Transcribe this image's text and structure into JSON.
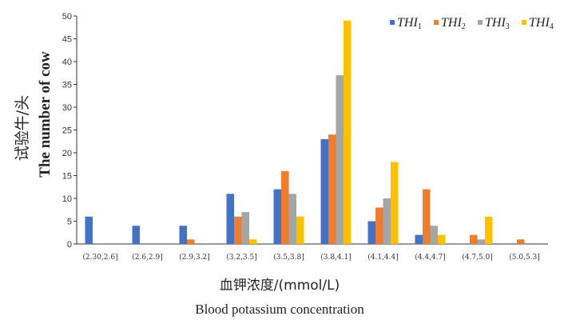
{
  "chart_data": {
    "type": "bar",
    "ylim": [
      0,
      50
    ],
    "yticks": [
      "0",
      "5",
      "10",
      "15",
      "20",
      "25",
      "30",
      "35",
      "40",
      "45",
      "50"
    ],
    "categories": [
      "(2.30,2.6]",
      "(2.6,2.9]",
      "(2.9,3.2]",
      "(3.2,3.5]",
      "(3.5,3.8]",
      "(3.8,4.1]",
      "(4.1,4.4]",
      "(4.4,4.7]",
      "(4.7,5.0]",
      "(5.0,5.3]"
    ],
    "series": [
      {
        "name": "THI",
        "subscript": "1",
        "color": "#4472C4",
        "values": [
          6,
          4,
          4,
          11,
          12,
          23,
          5,
          2,
          0,
          0
        ]
      },
      {
        "name": "THI",
        "subscript": "2",
        "color": "#ED7D31",
        "values": [
          0,
          0,
          1,
          6,
          16,
          24,
          8,
          12,
          2,
          1
        ]
      },
      {
        "name": "THI",
        "subscript": "3",
        "color": "#A5A5A5",
        "values": [
          0,
          0,
          0,
          7,
          11,
          37,
          10,
          4,
          1,
          0
        ]
      },
      {
        "name": "THI",
        "subscript": "4",
        "color": "#FFC000",
        "values": [
          0,
          0,
          0,
          1,
          6,
          49,
          18,
          2,
          6,
          0
        ]
      }
    ],
    "ylabel_cn": "试验牛/头",
    "ylabel_en": "The number of cow",
    "xlabel_cn": "血钾浓度/(mmol/L)",
    "xlabel_en": "Blood potassium concentration",
    "legend_position": "top-right",
    "grid": false
  }
}
